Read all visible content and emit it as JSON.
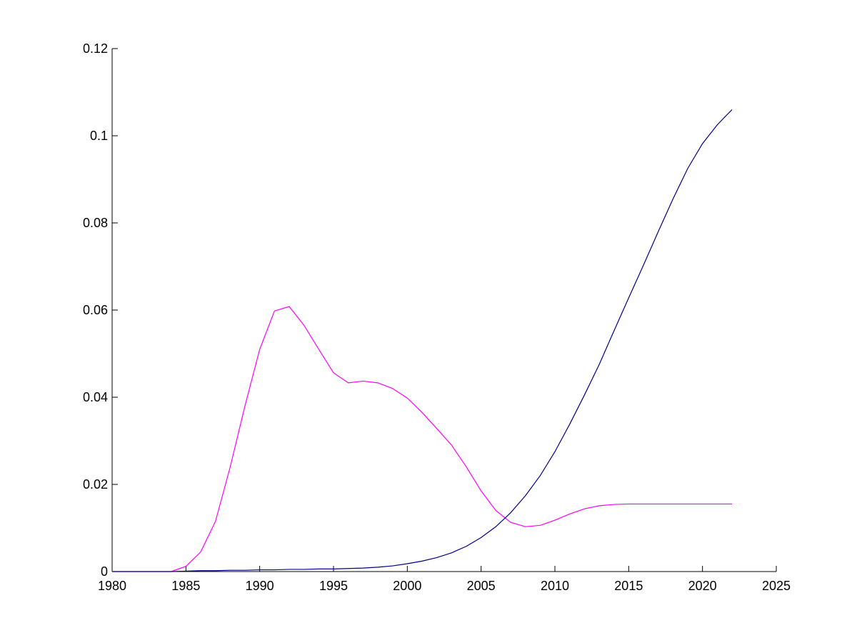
{
  "chart_data": {
    "type": "line",
    "title": "",
    "xlabel": "",
    "ylabel": "",
    "xlim": [
      1980,
      2025
    ],
    "ylim": [
      0,
      0.12
    ],
    "grid": false,
    "x_ticks": [
      1980,
      1985,
      1990,
      1995,
      2000,
      2005,
      2010,
      2015,
      2020,
      2025
    ],
    "y_ticks": [
      0,
      0.02,
      0.04,
      0.06,
      0.08,
      0.1,
      0.12
    ],
    "x_tick_labels": [
      "1980",
      "1985",
      "1990",
      "1995",
      "2000",
      "2005",
      "2010",
      "2015",
      "2020",
      "2025"
    ],
    "y_tick_labels": [
      "0",
      "0.02",
      "0.04",
      "0.06",
      "0.08",
      "0.1",
      "0.12"
    ],
    "series": [
      {
        "color": "#ff00ff",
        "x": [
          1980,
          1981,
          1982,
          1983,
          1984,
          1985,
          1986,
          1987,
          1988,
          1989,
          1990,
          1991,
          1992,
          1993,
          1994,
          1995,
          1996,
          1997,
          1998,
          1999,
          2000,
          2001,
          2002,
          2003,
          2004,
          2005,
          2006,
          2007,
          2008,
          2009,
          2010,
          2011,
          2012,
          2013,
          2014,
          2015,
          2016,
          2017,
          2018,
          2019,
          2020,
          2021,
          2022
        ],
        "y": [
          0,
          0,
          0,
          0,
          0,
          0.0012,
          0.0045,
          0.0115,
          0.024,
          0.038,
          0.051,
          0.0598,
          0.0608,
          0.0565,
          0.051,
          0.0456,
          0.0433,
          0.0437,
          0.0433,
          0.042,
          0.0398,
          0.0365,
          0.0328,
          0.029,
          0.024,
          0.0185,
          0.014,
          0.0113,
          0.0103,
          0.0106,
          0.0118,
          0.0132,
          0.0144,
          0.0151,
          0.0154,
          0.0155,
          0.0155,
          0.0155,
          0.0155,
          0.0155,
          0.0155,
          0.0155,
          0.0155
        ]
      },
      {
        "color": "#00008b",
        "x": [
          1980,
          1981,
          1982,
          1983,
          1984,
          1985,
          1986,
          1987,
          1988,
          1989,
          1990,
          1991,
          1992,
          1993,
          1994,
          1995,
          1996,
          1997,
          1998,
          1999,
          2000,
          2001,
          2002,
          2003,
          2004,
          2005,
          2006,
          2007,
          2008,
          2009,
          2010,
          2011,
          2012,
          2013,
          2014,
          2015,
          2016,
          2017,
          2018,
          2019,
          2020,
          2021,
          2022
        ],
        "y": [
          0,
          0,
          0,
          0,
          0,
          0.0001,
          0.0002,
          0.0002,
          0.0003,
          0.0003,
          0.0004,
          0.0004,
          0.0005,
          0.0005,
          0.0006,
          0.0006,
          0.0007,
          0.0008,
          0.001,
          0.0013,
          0.0018,
          0.0024,
          0.0032,
          0.0043,
          0.0058,
          0.0078,
          0.0103,
          0.0135,
          0.0174,
          0.022,
          0.0275,
          0.0338,
          0.0405,
          0.0475,
          0.0552,
          0.0628,
          0.0703,
          0.078,
          0.0855,
          0.0925,
          0.0982,
          0.1025,
          0.106
        ]
      }
    ]
  }
}
